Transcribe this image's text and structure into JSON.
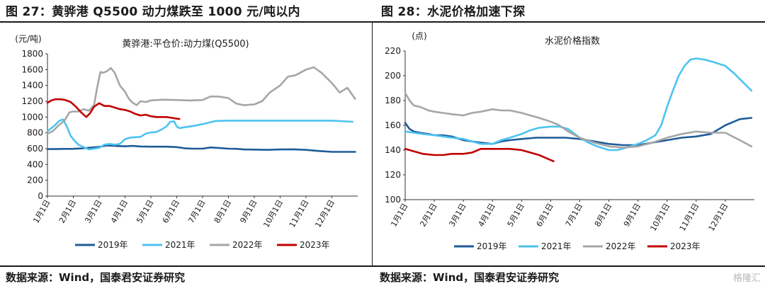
{
  "figures": [
    {
      "title": "图 27：黄骅港 Q5500 动力煤跌至 1000 元/吨以内"
    },
    {
      "title": "图 28：水泥价格加速下探"
    }
  ],
  "footer": {
    "source_left": "数据来源：Wind，国泰君安证券研究",
    "source_right": "数据来源：Wind，国泰君安证券研究",
    "watermark": "格隆汇"
  },
  "chart_data": [
    {
      "type": "line",
      "title": "黄骅港:平仓价:动力煤(Q5500)",
      "ylabel": "(元/吨)",
      "ylim": [
        0,
        1800
      ],
      "yticks": [
        0,
        200,
        400,
        600,
        800,
        1000,
        1200,
        1400,
        1600,
        1800
      ],
      "xlim": [
        1,
        13
      ],
      "x_ticks": [
        "1月1日",
        "2月1日",
        "3月1日",
        "4月1日",
        "5月1日",
        "6月1日",
        "7月1日",
        "8月1日",
        "9月1日",
        "10月1日",
        "11月1日",
        "12月1日"
      ],
      "legend_position": "bottom",
      "series": [
        {
          "name": "2019年",
          "color": "#1f5c99",
          "x": [
            1.0,
            1.3,
            1.6,
            2.0,
            2.3,
            2.6,
            3.0,
            3.3,
            3.6,
            4.0,
            4.3,
            4.6,
            5.0,
            5.3,
            5.6,
            6.0,
            6.3,
            6.6,
            7.0,
            7.3,
            7.6,
            8.0,
            8.3,
            8.6,
            9.0,
            9.5,
            10.0,
            10.5,
            11.0,
            11.5,
            12.0,
            12.5,
            12.9
          ],
          "y": [
            595,
            595,
            597,
            598,
            603,
            612,
            622,
            640,
            635,
            630,
            635,
            628,
            625,
            625,
            625,
            620,
            605,
            600,
            600,
            615,
            610,
            600,
            598,
            590,
            588,
            585,
            590,
            592,
            585,
            570,
            560,
            560,
            560
          ]
        },
        {
          "name": "2021年",
          "color": "#4dc3f0",
          "x": [
            1.0,
            1.15,
            1.3,
            1.45,
            1.6,
            1.75,
            1.9,
            2.05,
            2.2,
            2.4,
            2.6,
            2.8,
            3.0,
            3.2,
            3.4,
            3.6,
            3.8,
            4.0,
            4.2,
            4.4,
            4.6,
            4.8,
            5.0,
            5.2,
            5.4,
            5.6,
            5.75,
            5.9,
            6.0,
            6.1,
            6.3,
            6.6,
            7.0,
            7.5,
            8.0,
            9.0,
            10.0,
            11.0,
            12.0,
            12.8
          ],
          "y": [
            820,
            860,
            900,
            950,
            970,
            880,
            760,
            700,
            650,
            620,
            590,
            600,
            610,
            650,
            660,
            650,
            660,
            720,
            740,
            745,
            750,
            790,
            805,
            810,
            840,
            880,
            940,
            945,
            880,
            860,
            870,
            885,
            910,
            950,
            955,
            955,
            955,
            955,
            955,
            940
          ]
        },
        {
          "name": "2022年",
          "color": "#a6a6a6",
          "x": [
            1.0,
            1.2,
            1.45,
            1.65,
            1.85,
            2.0,
            2.2,
            2.4,
            2.6,
            2.8,
            2.95,
            3.05,
            3.15,
            3.3,
            3.45,
            3.6,
            3.8,
            4.0,
            4.15,
            4.3,
            4.45,
            4.6,
            4.8,
            5.0,
            5.2,
            5.5,
            6.0,
            6.5,
            7.0,
            7.3,
            7.6,
            8.0,
            8.3,
            8.6,
            9.0,
            9.3,
            9.6,
            10.0,
            10.3,
            10.6,
            11.0,
            11.3,
            11.6,
            12.0,
            12.3,
            12.6,
            12.9
          ],
          "y": [
            790,
            820,
            900,
            950,
            1060,
            1070,
            1070,
            1100,
            1080,
            1150,
            1420,
            1570,
            1560,
            1580,
            1620,
            1560,
            1400,
            1320,
            1230,
            1180,
            1150,
            1200,
            1190,
            1210,
            1215,
            1220,
            1215,
            1210,
            1215,
            1260,
            1260,
            1240,
            1170,
            1150,
            1160,
            1200,
            1310,
            1400,
            1510,
            1530,
            1600,
            1630,
            1560,
            1430,
            1310,
            1370,
            1230
          ]
        },
        {
          "name": "2023年",
          "color": "#c00000",
          "x": [
            1.0,
            1.15,
            1.3,
            1.5,
            1.7,
            1.9,
            2.1,
            2.3,
            2.5,
            2.65,
            2.8,
            3.0,
            3.2,
            3.4,
            3.6,
            3.8,
            4.0,
            4.2,
            4.4,
            4.6,
            4.8,
            5.0,
            5.2,
            5.4,
            5.6,
            5.8,
            6.0,
            6.1
          ],
          "y": [
            1180,
            1210,
            1225,
            1225,
            1215,
            1190,
            1130,
            1060,
            1000,
            1050,
            1130,
            1175,
            1140,
            1140,
            1120,
            1100,
            1090,
            1070,
            1040,
            1020,
            1030,
            1010,
            1000,
            1000,
            1000,
            990,
            980,
            975
          ]
        }
      ]
    },
    {
      "type": "line",
      "title": "水泥价格指数",
      "ylabel": "(点)",
      "ylim": [
        100,
        220
      ],
      "yticks": [
        100,
        120,
        140,
        160,
        180,
        200,
        220
      ],
      "xlim": [
        1,
        13
      ],
      "x_ticks": [
        "1月1日",
        "2月1日",
        "3月1日",
        "4月1日",
        "5月1日",
        "6月1日",
        "7月1日",
        "8月1日",
        "9月1日",
        "10月1日",
        "11月1日",
        "12月1日"
      ],
      "legend_position": "bottom",
      "series": [
        {
          "name": "2019年",
          "color": "#1f5c99",
          "x": [
            1.0,
            1.15,
            1.3,
            1.5,
            1.8,
            2.0,
            2.3,
            2.6,
            3.0,
            3.3,
            3.6,
            4.0,
            4.3,
            4.6,
            5.0,
            5.5,
            6.0,
            6.5,
            7.0,
            7.5,
            8.0,
            8.5,
            9.0,
            9.5,
            10.0,
            10.5,
            11.0,
            11.5,
            12.0,
            12.5,
            12.9
          ],
          "y": [
            162,
            157,
            155,
            154,
            153,
            152,
            152,
            151,
            148,
            147,
            146,
            145,
            147,
            148,
            149,
            150,
            150,
            150,
            149,
            147,
            145,
            144,
            144,
            146,
            148,
            150,
            151,
            153,
            160,
            165,
            166
          ]
        },
        {
          "name": "2021年",
          "color": "#4dc3f0",
          "x": [
            1.0,
            1.3,
            1.6,
            2.0,
            2.3,
            2.6,
            3.0,
            3.3,
            3.6,
            4.0,
            4.3,
            4.6,
            5.0,
            5.3,
            5.6,
            6.0,
            6.3,
            6.6,
            7.0,
            7.3,
            7.6,
            8.0,
            8.3,
            8.6,
            9.0,
            9.3,
            9.6,
            9.8,
            10.0,
            10.2,
            10.4,
            10.6,
            10.8,
            11.0,
            11.3,
            11.6,
            12.0,
            12.3,
            12.6,
            12.9
          ],
          "y": [
            155,
            154,
            153,
            152,
            151,
            150,
            149,
            147,
            145,
            145,
            148,
            150,
            153,
            156,
            158,
            159,
            159,
            157,
            150,
            146,
            143,
            140,
            140,
            142,
            145,
            148,
            152,
            160,
            175,
            188,
            200,
            208,
            213,
            214,
            213,
            211,
            208,
            202,
            195,
            188
          ]
        },
        {
          "name": "2022年",
          "color": "#a6a6a6",
          "x": [
            1.0,
            1.15,
            1.3,
            1.5,
            1.8,
            2.0,
            2.3,
            2.6,
            3.0,
            3.3,
            3.6,
            4.0,
            4.3,
            4.6,
            5.0,
            5.3,
            5.6,
            6.0,
            6.3,
            6.6,
            7.0,
            7.5,
            8.0,
            8.5,
            9.0,
            9.5,
            10.0,
            10.5,
            11.0,
            11.5,
            12.0,
            12.5,
            12.9
          ],
          "y": [
            186,
            180,
            176,
            175,
            172,
            171,
            170,
            169,
            168,
            170,
            171,
            173,
            172,
            172,
            170,
            168,
            166,
            163,
            160,
            155,
            150,
            146,
            143,
            142,
            143,
            146,
            150,
            153,
            155,
            154,
            154,
            148,
            143
          ]
        },
        {
          "name": "2023年",
          "color": "#c00000",
          "x": [
            1.0,
            1.3,
            1.6,
            2.0,
            2.3,
            2.6,
            3.0,
            3.3,
            3.6,
            4.0,
            4.3,
            4.6,
            5.0,
            5.3,
            5.6,
            5.9,
            6.1
          ],
          "y": [
            141,
            139,
            137,
            136,
            136,
            137,
            137,
            138,
            141,
            141,
            141,
            141,
            140,
            138,
            136,
            133,
            131
          ]
        }
      ]
    }
  ]
}
